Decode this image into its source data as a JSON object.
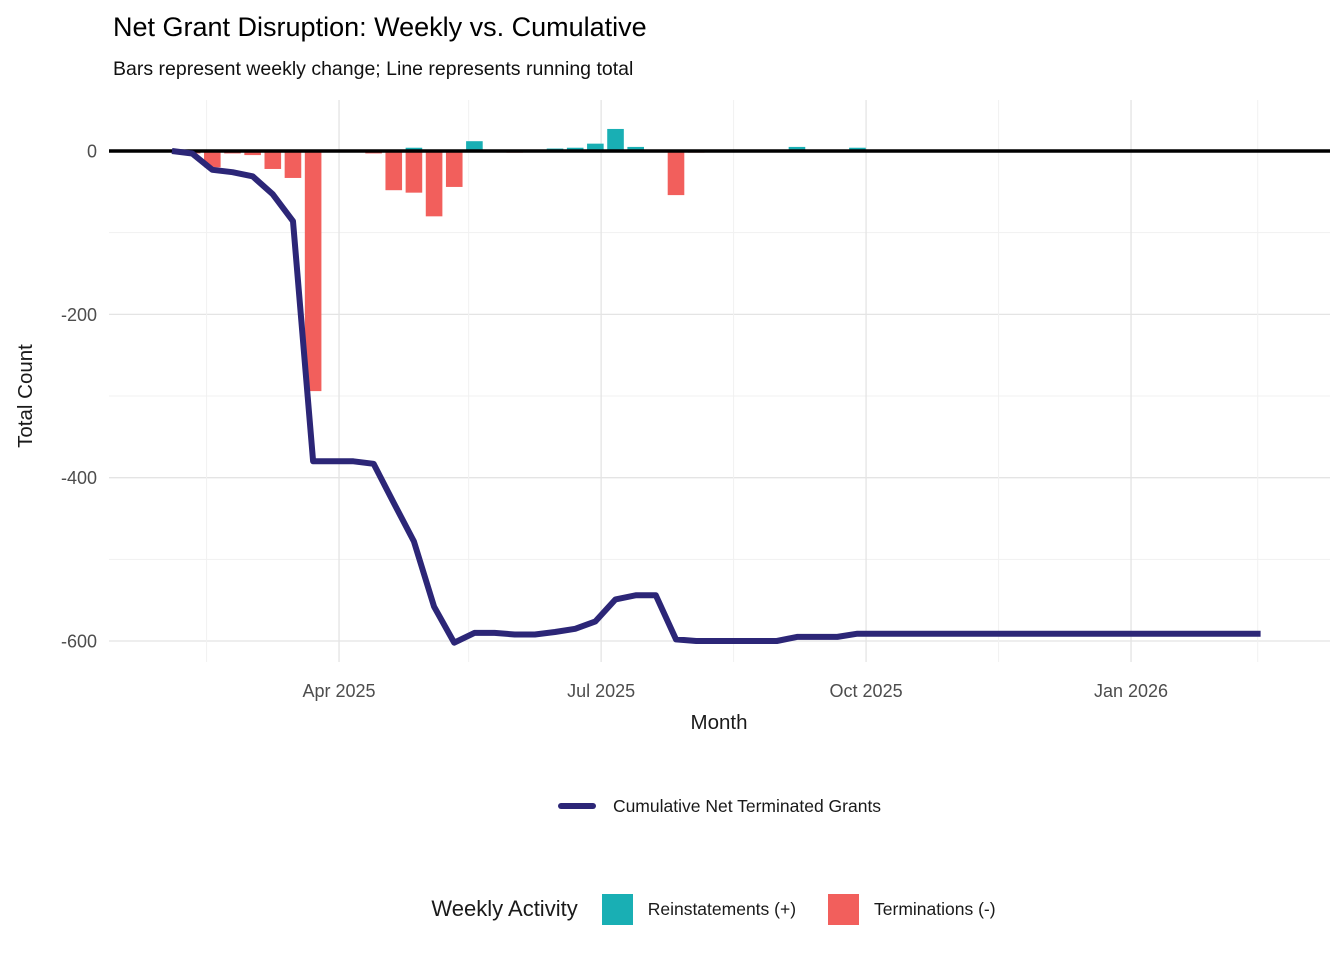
{
  "chart_data": {
    "type": "combo-bar-line",
    "title": "Net Grant Disruption: Weekly vs. Cumulative",
    "subtitle": "Bars represent weekly change; Line represents running total",
    "xlabel": "Month",
    "ylabel": "Total Count",
    "y_ticks": [
      0,
      -200,
      -400,
      -600
    ],
    "ylim": [
      -650,
      75
    ],
    "grid": true,
    "legend_position": "bottom",
    "x_ticks": [
      {
        "label": "Apr 2025",
        "date": "2025-04-01"
      },
      {
        "label": "Jul 2025",
        "date": "2025-07-01"
      },
      {
        "label": "Oct 2025",
        "date": "2025-10-01"
      },
      {
        "label": "Jan 2026",
        "date": "2026-01-01"
      }
    ],
    "weeks": [
      {
        "date": "2025-02-02",
        "reinstatements": 0,
        "terminations": 0,
        "cumulative": 0
      },
      {
        "date": "2025-02-09",
        "reinstatements": 0,
        "terminations": -3,
        "cumulative": -3
      },
      {
        "date": "2025-02-16",
        "reinstatements": 0,
        "terminations": -20,
        "cumulative": -23
      },
      {
        "date": "2025-02-23",
        "reinstatements": 0,
        "terminations": -3,
        "cumulative": -26
      },
      {
        "date": "2025-03-02",
        "reinstatements": 0,
        "terminations": -5,
        "cumulative": -31
      },
      {
        "date": "2025-03-09",
        "reinstatements": 0,
        "terminations": -22,
        "cumulative": -53
      },
      {
        "date": "2025-03-16",
        "reinstatements": 0,
        "terminations": -33,
        "cumulative": -86
      },
      {
        "date": "2025-03-23",
        "reinstatements": 0,
        "terminations": -294,
        "cumulative": -380
      },
      {
        "date": "2025-03-30",
        "reinstatements": 0,
        "terminations": 0,
        "cumulative": -380
      },
      {
        "date": "2025-04-06",
        "reinstatements": 0,
        "terminations": 0,
        "cumulative": -380
      },
      {
        "date": "2025-04-13",
        "reinstatements": 0,
        "terminations": -3,
        "cumulative": -383
      },
      {
        "date": "2025-04-20",
        "reinstatements": 0,
        "terminations": -48,
        "cumulative": -431
      },
      {
        "date": "2025-04-27",
        "reinstatements": 4,
        "terminations": -51,
        "cumulative": -478
      },
      {
        "date": "2025-05-04",
        "reinstatements": 0,
        "terminations": -80,
        "cumulative": -558
      },
      {
        "date": "2025-05-11",
        "reinstatements": 0,
        "terminations": -44,
        "cumulative": -602
      },
      {
        "date": "2025-05-18",
        "reinstatements": 12,
        "terminations": 0,
        "cumulative": -590
      },
      {
        "date": "2025-05-25",
        "reinstatements": 0,
        "terminations": 0,
        "cumulative": -590
      },
      {
        "date": "2025-06-01",
        "reinstatements": 0,
        "terminations": -2,
        "cumulative": -592
      },
      {
        "date": "2025-06-08",
        "reinstatements": 0,
        "terminations": 0,
        "cumulative": -592
      },
      {
        "date": "2025-06-15",
        "reinstatements": 3,
        "terminations": 0,
        "cumulative": -589
      },
      {
        "date": "2025-06-22",
        "reinstatements": 4,
        "terminations": 0,
        "cumulative": -585
      },
      {
        "date": "2025-06-29",
        "reinstatements": 9,
        "terminations": 0,
        "cumulative": -576
      },
      {
        "date": "2025-07-06",
        "reinstatements": 27,
        "terminations": 0,
        "cumulative": -549
      },
      {
        "date": "2025-07-13",
        "reinstatements": 5,
        "terminations": 0,
        "cumulative": -544
      },
      {
        "date": "2025-07-20",
        "reinstatements": 0,
        "terminations": 0,
        "cumulative": -544
      },
      {
        "date": "2025-07-27",
        "reinstatements": 0,
        "terminations": -54,
        "cumulative": -598
      },
      {
        "date": "2025-08-03",
        "reinstatements": 0,
        "terminations": -2,
        "cumulative": -600
      },
      {
        "date": "2025-08-10",
        "reinstatements": 0,
        "terminations": 0,
        "cumulative": -600
      },
      {
        "date": "2025-08-17",
        "reinstatements": 0,
        "terminations": 0,
        "cumulative": -600
      },
      {
        "date": "2025-08-24",
        "reinstatements": 0,
        "terminations": 0,
        "cumulative": -600
      },
      {
        "date": "2025-08-31",
        "reinstatements": 0,
        "terminations": 0,
        "cumulative": -600
      },
      {
        "date": "2025-09-07",
        "reinstatements": 5,
        "terminations": 0,
        "cumulative": -595
      },
      {
        "date": "2025-09-14",
        "reinstatements": 0,
        "terminations": 0,
        "cumulative": -595
      },
      {
        "date": "2025-09-21",
        "reinstatements": 0,
        "terminations": 0,
        "cumulative": -595
      },
      {
        "date": "2025-09-28",
        "reinstatements": 4,
        "terminations": 0,
        "cumulative": -591
      },
      {
        "date": "2025-10-05",
        "reinstatements": 0,
        "terminations": 0,
        "cumulative": -591
      },
      {
        "date": "2025-10-12",
        "reinstatements": 0,
        "terminations": 0,
        "cumulative": -591
      },
      {
        "date": "2025-10-19",
        "reinstatements": 0,
        "terminations": 0,
        "cumulative": -591
      },
      {
        "date": "2025-10-26",
        "reinstatements": 0,
        "terminations": 0,
        "cumulative": -591
      },
      {
        "date": "2025-11-02",
        "reinstatements": 0,
        "terminations": 0,
        "cumulative": -591
      },
      {
        "date": "2025-11-09",
        "reinstatements": 0,
        "terminations": 0,
        "cumulative": -591
      },
      {
        "date": "2025-11-16",
        "reinstatements": 0,
        "terminations": 0,
        "cumulative": -591
      },
      {
        "date": "2025-11-23",
        "reinstatements": 0,
        "terminations": 0,
        "cumulative": -591
      },
      {
        "date": "2025-11-30",
        "reinstatements": 0,
        "terminations": 0,
        "cumulative": -591
      },
      {
        "date": "2025-12-07",
        "reinstatements": 0,
        "terminations": 0,
        "cumulative": -591
      },
      {
        "date": "2025-12-14",
        "reinstatements": 0,
        "terminations": 0,
        "cumulative": -591
      },
      {
        "date": "2025-12-21",
        "reinstatements": 0,
        "terminations": 0,
        "cumulative": -591
      },
      {
        "date": "2025-12-28",
        "reinstatements": 0,
        "terminations": 0,
        "cumulative": -591
      },
      {
        "date": "2026-01-04",
        "reinstatements": 0,
        "terminations": 0,
        "cumulative": -591
      },
      {
        "date": "2026-01-11",
        "reinstatements": 0,
        "terminations": 0,
        "cumulative": -591
      },
      {
        "date": "2026-01-18",
        "reinstatements": 0,
        "terminations": 0,
        "cumulative": -591
      },
      {
        "date": "2026-01-25",
        "reinstatements": 0,
        "terminations": 0,
        "cumulative": -591
      },
      {
        "date": "2026-02-01",
        "reinstatements": 0,
        "terminations": 0,
        "cumulative": -591
      },
      {
        "date": "2026-02-08",
        "reinstatements": 0,
        "terminations": 0,
        "cumulative": -591
      },
      {
        "date": "2026-02-15",
        "reinstatements": 0,
        "terminations": 0,
        "cumulative": -591
      }
    ]
  },
  "legend_line": {
    "label": "Cumulative Net Terminated Grants",
    "swatch_color": "#2C2677"
  },
  "legend_weekly": {
    "title": "Weekly Activity",
    "items": [
      {
        "label": "Reinstatements (+)",
        "color": "#19AFB4"
      },
      {
        "label": "Terminations (-)",
        "color": "#F25F5C"
      }
    ]
  },
  "colors": {
    "cumulative_line": "#2C2677",
    "reinstatements": "#19AFB4",
    "terminations": "#F25F5C",
    "zero_line": "#000000",
    "grid_major": "#E4E4E4",
    "grid_minor": "#F1F1F1",
    "tick_text": "#4D4D4D",
    "axis_title_text": "#1A1A1A"
  }
}
